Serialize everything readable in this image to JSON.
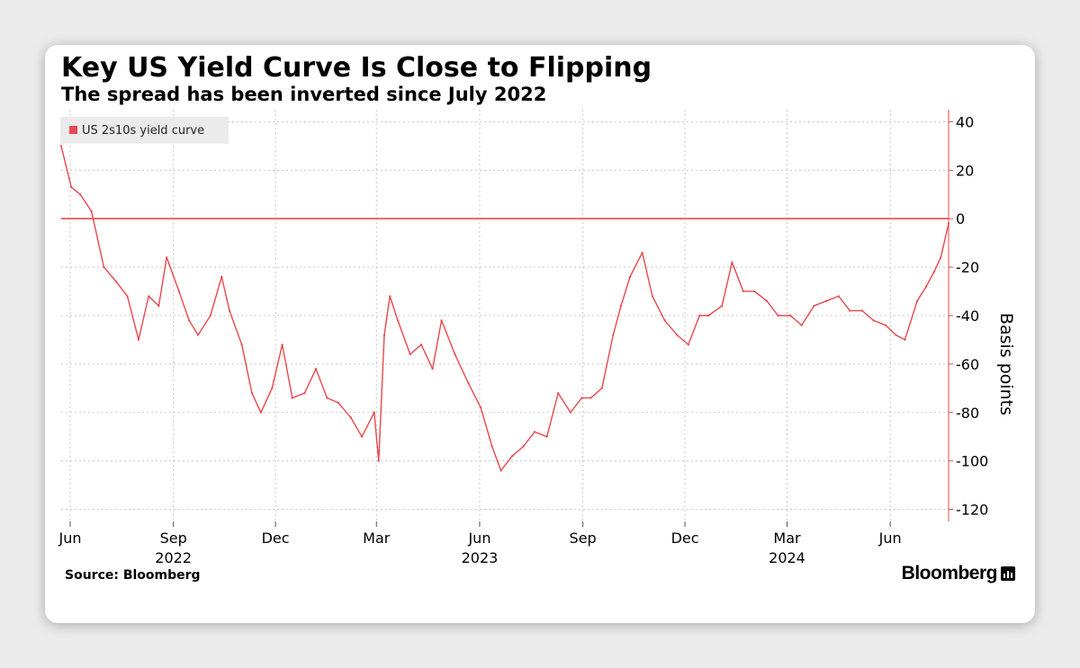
{
  "chart_data": {
    "type": "line",
    "title": "Key US Yield Curve Is Close to Flipping",
    "subtitle": "The spread has been inverted since July 2022",
    "ylabel": "Basis points",
    "ylim": [
      -125,
      45
    ],
    "yticks": [
      40,
      20,
      0,
      -20,
      -40,
      -60,
      -80,
      -100,
      -120
    ],
    "xlim": [
      "2022-05-24",
      "2024-07-23"
    ],
    "x_ticks": [
      {
        "date": "2022-06-01",
        "label": "Jun"
      },
      {
        "date": "2022-09-01",
        "label": "Sep"
      },
      {
        "date": "2022-12-01",
        "label": "Dec"
      },
      {
        "date": "2023-03-01",
        "label": "Mar"
      },
      {
        "date": "2023-06-01",
        "label": "Jun"
      },
      {
        "date": "2023-09-01",
        "label": "Sep"
      },
      {
        "date": "2023-12-01",
        "label": "Dec"
      },
      {
        "date": "2024-03-01",
        "label": "Mar"
      },
      {
        "date": "2024-06-01",
        "label": "Jun"
      }
    ],
    "year_labels": [
      {
        "date": "2022-09-01",
        "label": "2022"
      },
      {
        "date": "2023-06-01",
        "label": "2023"
      },
      {
        "date": "2024-03-01",
        "label": "2024"
      }
    ],
    "reference_line": 0,
    "grid": true,
    "legend_position": "top-left",
    "series": [
      {
        "name": "US 2s10s yield curve",
        "color": "#e8484e",
        "x": [
          "2022-05-24",
          "2022-06-02",
          "2022-06-10",
          "2022-06-20",
          "2022-07-01",
          "2022-07-12",
          "2022-07-22",
          "2022-08-01",
          "2022-08-10",
          "2022-08-19",
          "2022-08-26",
          "2022-09-06",
          "2022-09-15",
          "2022-09-23",
          "2022-10-04",
          "2022-10-14",
          "2022-10-21",
          "2022-11-01",
          "2022-11-10",
          "2022-11-18",
          "2022-11-28",
          "2022-12-07",
          "2022-12-16",
          "2022-12-27",
          "2023-01-06",
          "2023-01-16",
          "2023-01-26",
          "2023-02-06",
          "2023-02-16",
          "2023-02-27",
          "2023-03-03",
          "2023-03-08",
          "2023-03-13",
          "2023-03-20",
          "2023-03-31",
          "2023-04-10",
          "2023-04-20",
          "2023-04-28",
          "2023-05-10",
          "2023-05-22",
          "2023-06-02",
          "2023-06-12",
          "2023-06-20",
          "2023-06-30",
          "2023-07-10",
          "2023-07-20",
          "2023-07-31",
          "2023-08-10",
          "2023-08-21",
          "2023-08-31",
          "2023-09-08",
          "2023-09-18",
          "2023-09-28",
          "2023-10-05",
          "2023-10-13",
          "2023-10-24",
          "2023-11-02",
          "2023-11-13",
          "2023-11-24",
          "2023-12-04",
          "2023-12-14",
          "2023-12-22",
          "2024-01-03",
          "2024-01-12",
          "2024-01-22",
          "2024-02-01",
          "2024-02-12",
          "2024-02-22",
          "2024-03-04",
          "2024-03-14",
          "2024-03-25",
          "2024-04-05",
          "2024-04-16",
          "2024-04-26",
          "2024-05-07",
          "2024-05-17",
          "2024-05-28",
          "2024-06-06",
          "2024-06-14",
          "2024-06-25",
          "2024-07-03",
          "2024-07-10",
          "2024-07-16",
          "2024-07-23"
        ],
        "values": [
          30,
          13,
          10,
          3,
          -20,
          -26,
          -32,
          -50,
          -32,
          -36,
          -16,
          -30,
          -42,
          -48,
          -40,
          -24,
          -38,
          -52,
          -72,
          -80,
          -70,
          -52,
          -74,
          -72,
          -62,
          -74,
          -76,
          -82,
          -90,
          -80,
          -100,
          -48,
          -32,
          -42,
          -56,
          -52,
          -62,
          -42,
          -56,
          -68,
          -78,
          -94,
          -104,
          -98,
          -94,
          -88,
          -90,
          -72,
          -80,
          -74,
          -74,
          -70,
          -48,
          -36,
          -24,
          -14,
          -32,
          -42,
          -48,
          -52,
          -40,
          -40,
          -36,
          -18,
          -30,
          -30,
          -34,
          -40,
          -40,
          -44,
          -36,
          -34,
          -32,
          -38,
          -38,
          -42,
          -44,
          -48,
          -50,
          -34,
          -28,
          -22,
          -16,
          -2
        ]
      }
    ]
  },
  "footer": {
    "source": "Source: Bloomberg",
    "brand": "Bloomberg"
  }
}
